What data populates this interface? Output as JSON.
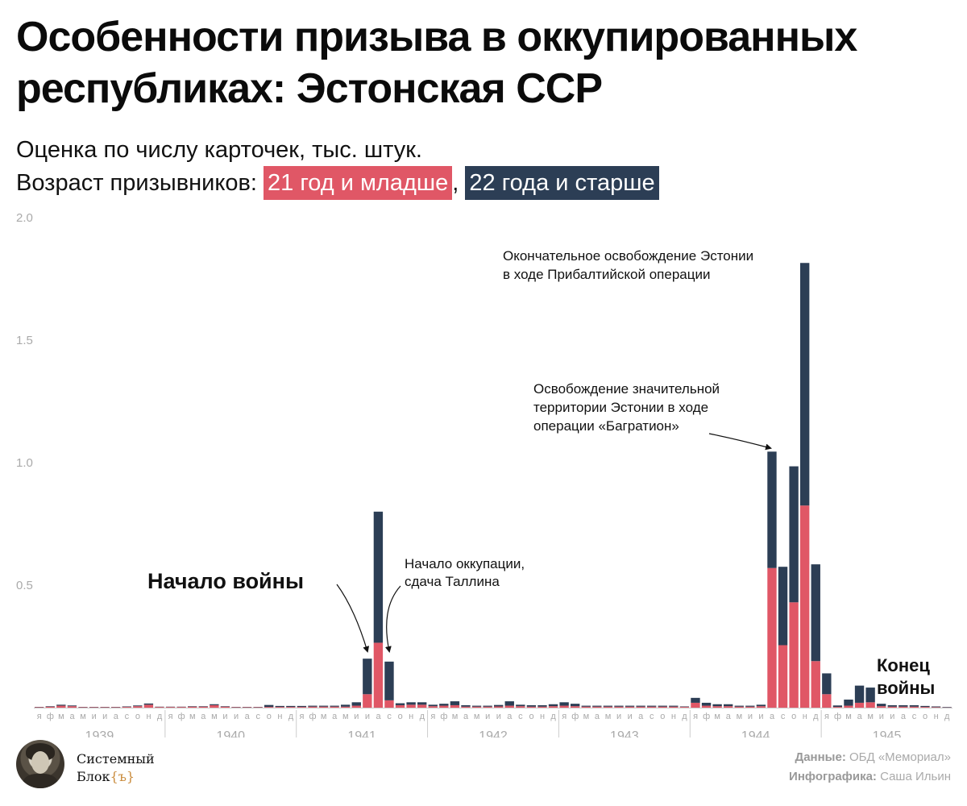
{
  "header": {
    "title": "Особенности призыва в оккупированных республиках: Эстонская ССР",
    "subtitle": "Оценка по числу карточек, тыс. штук.",
    "legend_prefix": "Возраст призывников:",
    "legend_young": "21 год и младше",
    "legend_separator": ",",
    "legend_old": "22 года и старше"
  },
  "colors": {
    "young": "#e05766",
    "old": "#2c3e55",
    "axis_text": "#aaaaaa",
    "annotation": "#111111"
  },
  "chart_data": {
    "type": "bar",
    "stacked": true,
    "title": "Особенности призыва в оккупированных республиках: Эстонская ССР",
    "ylabel": "",
    "xlabel": "",
    "ylim": [
      0,
      2.0
    ],
    "yticks": [
      "2.0",
      "1.5",
      "1.0",
      "0.5"
    ],
    "grid": false,
    "legend": "top-left",
    "month_letters": [
      "я",
      "ф",
      "м",
      "а",
      "м",
      "и",
      "и",
      "а",
      "с",
      "о",
      "н",
      "д"
    ],
    "years": [
      "1939",
      "1940",
      "1941",
      "1942",
      "1943",
      "1944",
      "1945"
    ],
    "series": [
      {
        "name": "21 год и младше",
        "values": [
          0.002,
          0.004,
          0.008,
          0.006,
          0.002,
          0.002,
          0.002,
          0.002,
          0.003,
          0.006,
          0.012,
          0.003,
          0.003,
          0.003,
          0.004,
          0.004,
          0.01,
          0.004,
          0.002,
          0.002,
          0.002,
          0.003,
          0.003,
          0.003,
          0.003,
          0.004,
          0.004,
          0.004,
          0.004,
          0.008,
          0.055,
          0.265,
          0.03,
          0.01,
          0.012,
          0.012,
          0.006,
          0.008,
          0.01,
          0.004,
          0.004,
          0.004,
          0.005,
          0.008,
          0.006,
          0.004,
          0.004,
          0.006,
          0.008,
          0.006,
          0.004,
          0.004,
          0.004,
          0.004,
          0.004,
          0.004,
          0.004,
          0.004,
          0.004,
          0.003,
          0.02,
          0.008,
          0.006,
          0.006,
          0.004,
          0.004,
          0.006,
          0.57,
          0.255,
          0.43,
          0.825,
          0.19,
          0.055,
          0.003,
          0.008,
          0.02,
          0.022,
          0.006,
          0.004,
          0.004,
          0.004,
          0.003,
          0.002,
          0.001
        ]
      },
      {
        "name": "22 года и старше",
        "values": [
          0.001,
          0.002,
          0.004,
          0.003,
          0.001,
          0.001,
          0.001,
          0.001,
          0.002,
          0.003,
          0.005,
          0.001,
          0.001,
          0.001,
          0.002,
          0.002,
          0.004,
          0.002,
          0.001,
          0.001,
          0.001,
          0.008,
          0.004,
          0.004,
          0.004,
          0.004,
          0.004,
          0.004,
          0.008,
          0.014,
          0.145,
          0.535,
          0.158,
          0.008,
          0.01,
          0.01,
          0.006,
          0.008,
          0.016,
          0.006,
          0.004,
          0.004,
          0.006,
          0.018,
          0.006,
          0.006,
          0.006,
          0.008,
          0.014,
          0.01,
          0.004,
          0.004,
          0.004,
          0.004,
          0.004,
          0.004,
          0.004,
          0.004,
          0.004,
          0.002,
          0.02,
          0.012,
          0.008,
          0.008,
          0.004,
          0.004,
          0.006,
          0.475,
          0.32,
          0.555,
          0.99,
          0.395,
          0.085,
          0.006,
          0.025,
          0.07,
          0.06,
          0.01,
          0.006,
          0.006,
          0.006,
          0.004,
          0.003,
          0.002
        ]
      }
    ],
    "annotations": [
      {
        "text": "Начало войны",
        "style": "bold-large",
        "target_month": 30
      },
      {
        "text": "Начало оккупации,\nсдача Таллина",
        "style": "normal",
        "target_month": 32
      },
      {
        "text": "Освобождение значительной\nтерритории Эстонии в ходе\nоперации «Багратион»",
        "style": "normal",
        "target_month": 67
      },
      {
        "text": "Окончательное освобождение Эстонии\nв ходе Прибалтийской операции",
        "style": "normal",
        "target_month": 70
      },
      {
        "text": "Конец\nвойны",
        "style": "bold-medium",
        "target_month": 76
      }
    ]
  },
  "footer": {
    "brand_line1": "Системный",
    "brand_line2_prefix": "Блок",
    "brand_line2_mark": "{ъ}",
    "credit_data_label": "Данные:",
    "credit_data_value": "ОБД «Мемориал»",
    "credit_graphic_label": "Инфографика:",
    "credit_graphic_value": "Саша Ильин"
  }
}
